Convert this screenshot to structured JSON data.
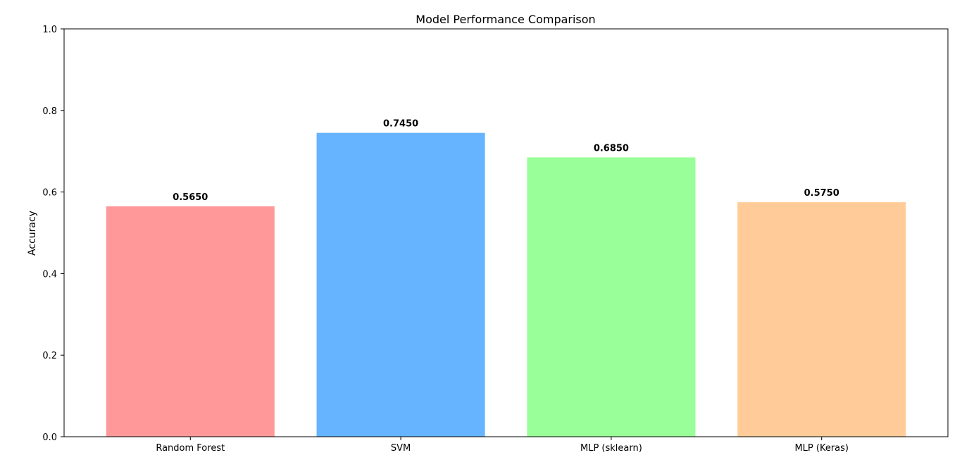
{
  "chart_data": {
    "type": "bar",
    "title": "Model Performance Comparison",
    "xlabel": "",
    "ylabel": "Accuracy",
    "categories": [
      "Random Forest",
      "SVM",
      "MLP (sklearn)",
      "MLP (Keras)"
    ],
    "values": [
      0.565,
      0.745,
      0.685,
      0.575
    ],
    "value_labels": [
      "0.5650",
      "0.7450",
      "0.6850",
      "0.5750"
    ],
    "colors": [
      "#ff9999",
      "#66b3ff",
      "#99ff99",
      "#ffcc99"
    ],
    "ylim": [
      0,
      1.0
    ],
    "yticks": [
      0.0,
      0.2,
      0.4,
      0.6,
      0.8,
      1.0
    ],
    "ytick_labels": [
      "0.0",
      "0.2",
      "0.4",
      "0.6",
      "0.8",
      "1.0"
    ],
    "grid": false,
    "legend": "none"
  }
}
